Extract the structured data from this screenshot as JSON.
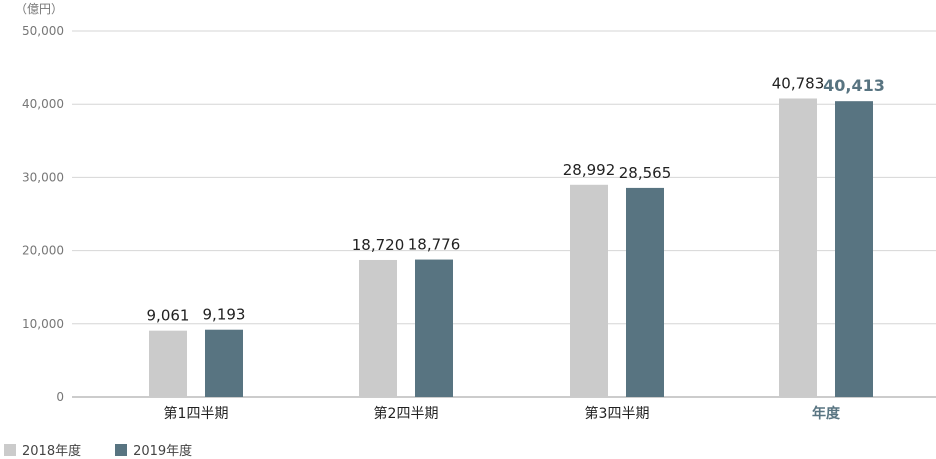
{
  "chart_data": {
    "type": "bar",
    "unit_label": "（億円）",
    "ylim": [
      0,
      50000
    ],
    "y_ticks": [
      "0",
      "10,000",
      "20,000",
      "30,000",
      "40,000",
      "50,000"
    ],
    "categories": [
      "第1四半期",
      "第2四半期",
      "第3四半期",
      "年度"
    ],
    "series": [
      {
        "name": "2018年度",
        "color": "#cbcbcb",
        "values": [
          9061,
          18720,
          28992,
          40783
        ],
        "labels": [
          "9,061",
          "18,720",
          "28,992",
          "40,783"
        ]
      },
      {
        "name": "2019年度",
        "color": "#587481",
        "values": [
          9193,
          18776,
          28565,
          40413
        ],
        "labels": [
          "9,193",
          "18,776",
          "28,565",
          "40,413"
        ]
      }
    ],
    "highlight_category": "年度",
    "highlight_color": "#587481",
    "grid": true,
    "legend_position": "bottom-left"
  }
}
